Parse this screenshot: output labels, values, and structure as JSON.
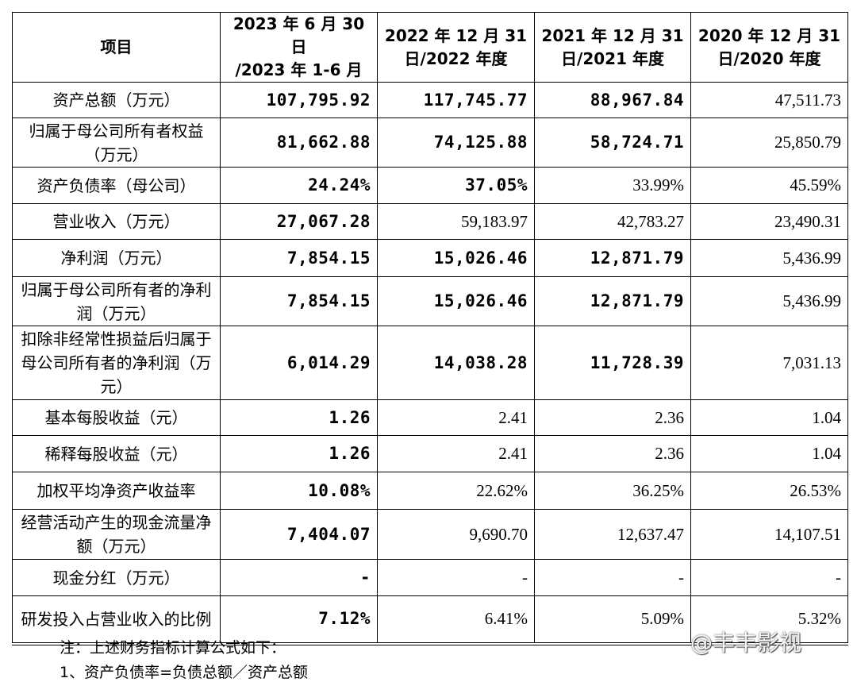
{
  "table": {
    "header": [
      [
        "项目"
      ],
      [
        "2023 年 6 月 30 日",
        "/2023 年 1-6 月"
      ],
      [
        "2022 年 12 月 31",
        "日/2022 年度"
      ],
      [
        "2021 年 12 月 31",
        "日/2021 年度"
      ],
      [
        "2020 年 12 月 31",
        "日/2020 年度"
      ]
    ],
    "rows": [
      [
        "资产总额（万元）",
        "107,795.92",
        "117,745.77",
        "88,967.84",
        "47,511.73"
      ],
      [
        "归属于母公司所有者权益（万元）",
        "81,662.88",
        "74,125.88",
        "58,724.71",
        "25,850.79"
      ],
      [
        "资产负债率（母公司）",
        "24.24%",
        "37.05%",
        "33.99%",
        "45.59%"
      ],
      [
        "营业收入（万元）",
        "27,067.28",
        "59,183.97",
        "42,783.27",
        "23,490.31"
      ],
      [
        "净利润（万元）",
        "7,854.15",
        "15,026.46",
        "12,871.79",
        "5,436.99"
      ],
      [
        "归属于母公司所有者的净利润（万元）",
        "7,854.15",
        "15,026.46",
        "12,871.79",
        "5,436.99"
      ],
      [
        "扣除非经常性损益后归属于母公司所有者的净利润（万元）",
        "6,014.29",
        "14,038.28",
        "11,728.39",
        "7,031.13"
      ],
      [
        "基本每股收益（元）",
        "1.26",
        "2.41",
        "2.36",
        "1.04"
      ],
      [
        "稀释每股收益（元）",
        "1.26",
        "2.41",
        "2.36",
        "1.04"
      ],
      [
        "加权平均净资产收益率",
        "10.08%",
        "22.62%",
        "36.25%",
        "26.53%"
      ],
      [
        "经营活动产生的现金流量净额（万元）",
        "7,404.07",
        "9,690.70",
        "12,637.47",
        "14,107.51"
      ],
      [
        "现金分红（万元）",
        "-",
        "-",
        "-",
        "-"
      ],
      [
        "研发投入占营业收入的比例",
        "7.12%",
        "6.41%",
        "5.09%",
        "5.32%"
      ]
    ]
  },
  "notes": [
    "注：上述财务指标计算公式如下：",
    "1、资产负债率=负债总额／资产总额"
  ],
  "watermark": "@丰丰影视"
}
